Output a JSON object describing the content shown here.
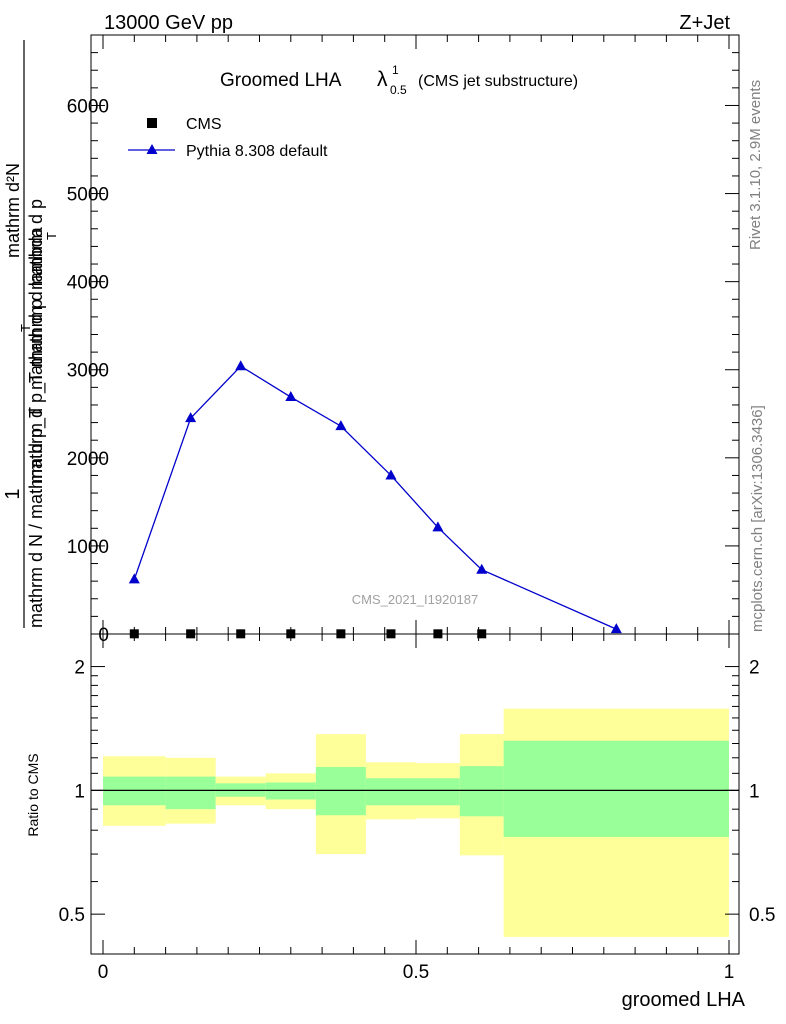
{
  "header": {
    "energy_label": "13000 GeV pp",
    "process_label": "Z+Jet"
  },
  "side_labels": {
    "rivet": "Rivet 3.1.10,  2.9M events",
    "mcplots": "mcplots.cern.ch [arXiv:1306.3436]"
  },
  "chart_data": [
    {
      "type": "line",
      "title_main": "Groomed LHA",
      "title_lambda": "λ",
      "title_sup": "1",
      "title_sub": "0.5",
      "title_suffix": "(CMS jet substructure)",
      "analysis_label": "CMS_2021_I1920187",
      "ylabel": {
        "left_fraction_top": "1",
        "left_fraction_bottom": "mathrm d N / mathrm d p_T",
        "right_fraction_top": "mathrm d²N",
        "right_fraction_bottom": "mathrm d p_T mathrm d lambda",
        "overlay_a": "mathrm d p",
        "overlay_b": "mathrm d p",
        "overlay_sub": "T"
      },
      "xlim": [
        0,
        1
      ],
      "ylim": [
        0,
        6800
      ],
      "y_ticks": [
        {
          "value": 0,
          "label": "0"
        },
        {
          "value": 1000,
          "label": "1000"
        },
        {
          "value": 2000,
          "label": "2000"
        },
        {
          "value": 3000,
          "label": "3000"
        },
        {
          "value": 4000,
          "label": "4000"
        },
        {
          "value": 5000,
          "label": "5000"
        },
        {
          "value": 6000,
          "label": "6000"
        }
      ],
      "legend": {
        "placement": "top-left",
        "entries": [
          {
            "name": "CMS",
            "marker": "square",
            "color": "#000000"
          },
          {
            "name": "Pythia 8.308 default",
            "marker": "triangle",
            "color": "#0000cc"
          }
        ]
      },
      "series": [
        {
          "name": "CMS",
          "color": "#000000",
          "x": [
            0.05,
            0.14,
            0.22,
            0.3,
            0.38,
            0.46,
            0.535,
            0.605
          ],
          "values": [
            2,
            2,
            2,
            2,
            2,
            2,
            2,
            2
          ]
        },
        {
          "name": "Pythia 8.308 default",
          "color": "#0000cc",
          "x": [
            0.05,
            0.14,
            0.22,
            0.3,
            0.38,
            0.46,
            0.535,
            0.605,
            0.82
          ],
          "values": [
            620,
            2450,
            3040,
            2690,
            2360,
            1800,
            1210,
            730,
            55
          ]
        }
      ]
    },
    {
      "type": "area",
      "ylabel": "Ratio to CMS",
      "xlabel": "groomed LHA",
      "scale": "log",
      "xlim": [
        0,
        1
      ],
      "ylim": [
        0.4,
        2.4
      ],
      "reference_line": 1,
      "x_ticks": [
        {
          "value": 0,
          "label": "0"
        },
        {
          "value": 0.5,
          "label": "0.5"
        },
        {
          "value": 1,
          "label": "1"
        }
      ],
      "y_ticks": [
        {
          "value": 0.5,
          "label": "0.5"
        },
        {
          "value": 1,
          "label": "1"
        },
        {
          "value": 2,
          "label": "2"
        }
      ],
      "band_colors": {
        "stat": "#99ff99",
        "total": "#ffff99",
        "line": "#000000"
      },
      "bins": [
        {
          "x_lo": 0.0,
          "x_hi": 0.1,
          "stat_lo": 0.92,
          "stat_hi": 1.08,
          "tot_lo": 0.82,
          "tot_hi": 1.21
        },
        {
          "x_lo": 0.1,
          "x_hi": 0.18,
          "stat_lo": 0.9,
          "stat_hi": 1.08,
          "tot_lo": 0.83,
          "tot_hi": 1.2
        },
        {
          "x_lo": 0.18,
          "x_hi": 0.26,
          "stat_lo": 0.965,
          "stat_hi": 1.04,
          "tot_lo": 0.92,
          "tot_hi": 1.08
        },
        {
          "x_lo": 0.26,
          "x_hi": 0.34,
          "stat_lo": 0.95,
          "stat_hi": 1.045,
          "tot_lo": 0.9,
          "tot_hi": 1.1
        },
        {
          "x_lo": 0.34,
          "x_hi": 0.42,
          "stat_lo": 0.87,
          "stat_hi": 1.14,
          "tot_lo": 0.7,
          "tot_hi": 1.37
        },
        {
          "x_lo": 0.42,
          "x_hi": 0.5,
          "stat_lo": 0.92,
          "stat_hi": 1.07,
          "tot_lo": 0.85,
          "tot_hi": 1.17
        },
        {
          "x_lo": 0.5,
          "x_hi": 0.57,
          "stat_lo": 0.92,
          "stat_hi": 1.07,
          "tot_lo": 0.855,
          "tot_hi": 1.165
        },
        {
          "x_lo": 0.57,
          "x_hi": 0.64,
          "stat_lo": 0.865,
          "stat_hi": 1.145,
          "tot_lo": 0.695,
          "tot_hi": 1.37
        },
        {
          "x_lo": 0.64,
          "x_hi": 1.0,
          "stat_lo": 0.77,
          "stat_hi": 1.32,
          "tot_lo": 0.44,
          "tot_hi": 1.58
        }
      ]
    }
  ]
}
